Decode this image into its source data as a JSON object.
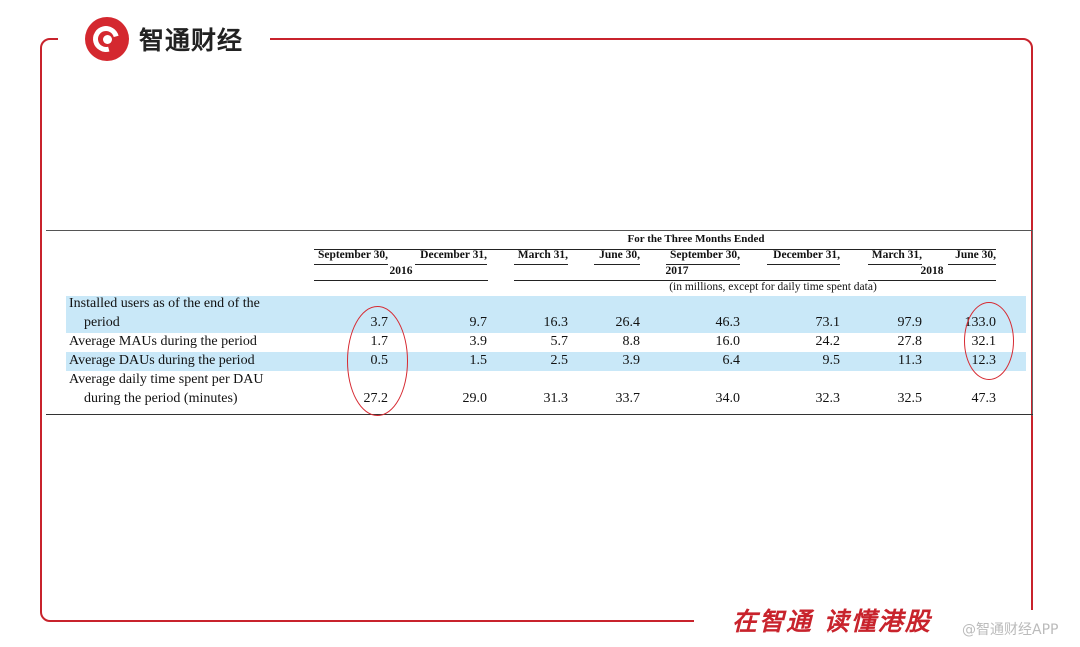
{
  "brand": {
    "name": "智通财经",
    "slogan": "在智通 读懂港股",
    "watermark": "@智通财经APP"
  },
  "table": {
    "header_title": "For the Three Months Ended",
    "columns": [
      "September 30,",
      "December 31,",
      "March 31,",
      "June 30,",
      "September 30,",
      "December 31,",
      "March 31,",
      "June 30,"
    ],
    "years": [
      "2016",
      "2017",
      "2018"
    ],
    "unit_note": "(in millions, except for daily time spent data)",
    "rows": [
      {
        "label_1": "Installed users as of the end of the",
        "label_2": "period",
        "values": [
          "3.7",
          "9.7",
          "16.3",
          "26.4",
          "46.3",
          "73.1",
          "97.9",
          "133.0"
        ]
      },
      {
        "label_1": "Average MAUs during the period",
        "values": [
          "1.7",
          "3.9",
          "5.7",
          "8.8",
          "16.0",
          "24.2",
          "27.8",
          "32.1"
        ]
      },
      {
        "label_1": "Average DAUs during the period",
        "values": [
          "0.5",
          "1.5",
          "2.5",
          "3.9",
          "6.4",
          "9.5",
          "11.3",
          "12.3"
        ]
      },
      {
        "label_1": "Average daily time spent per DAU",
        "label_2": "during the period (minutes)",
        "values": [
          "27.2",
          "29.0",
          "31.3",
          "33.7",
          "34.0",
          "32.3",
          "32.5",
          "47.3"
        ]
      }
    ]
  },
  "colors": {
    "brand_red": "#c8232c",
    "row_band": "#c9e8f8"
  }
}
